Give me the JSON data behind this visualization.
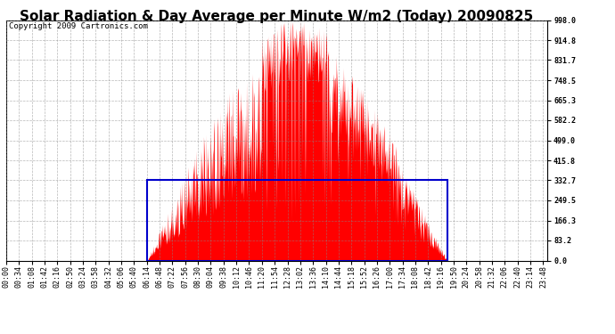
{
  "title": "Solar Radiation & Day Average per Minute W/m2 (Today) 20090825",
  "copyright": "Copyright 2009 Cartronics.com",
  "background_color": "#ffffff",
  "plot_bg_color": "#ffffff",
  "yticks": [
    0.0,
    83.2,
    166.3,
    249.5,
    332.7,
    415.8,
    499.0,
    582.2,
    665.3,
    748.5,
    831.7,
    914.8,
    998.0
  ],
  "ymax": 998.0,
  "ymin": 0.0,
  "bar_color": "#ff0000",
  "rect_color": "#0000cc",
  "grid_color": "#888888",
  "title_fontsize": 11,
  "copyright_fontsize": 6.5,
  "tick_fontsize": 6,
  "num_minutes": 1440,
  "sunrise_minute": 374,
  "sunset_minute": 1173,
  "day_avg": 332.7,
  "label_step": 34
}
